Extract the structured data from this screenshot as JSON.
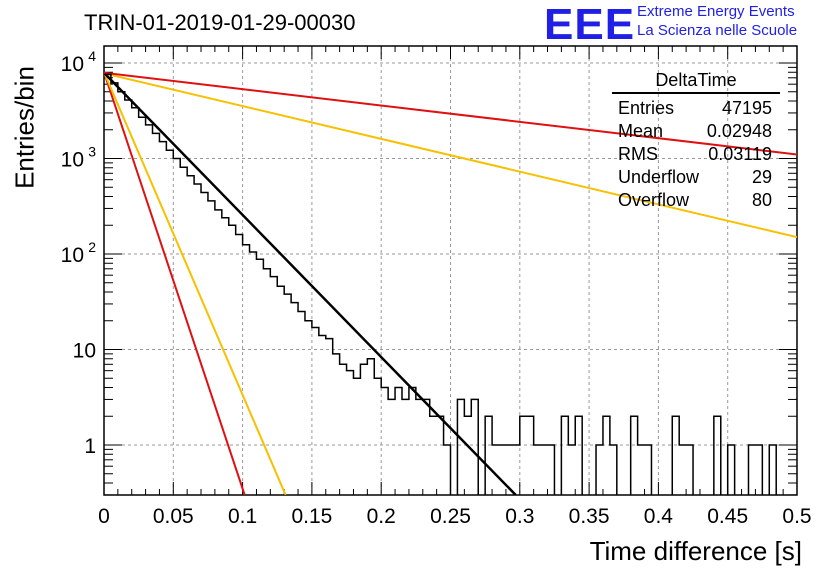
{
  "header": {
    "title": "TRIN-01-2019-01-29-00030",
    "logo_text": "EEE",
    "logo_line1": "Extreme Energy Events",
    "logo_line2": "La Scienza nelle Scuole",
    "logo_color": "#1f1fe6"
  },
  "stats": {
    "title": "DeltaTime",
    "rows": [
      {
        "label": "Entries",
        "value": "47195"
      },
      {
        "label": "Mean",
        "value": "0.02948"
      },
      {
        "label": "RMS",
        "value": "0.03119"
      },
      {
        "label": "Underflow",
        "value": "29"
      },
      {
        "label": "Overflow",
        "value": "80"
      }
    ]
  },
  "chart_data": {
    "type": "line",
    "title": "TRIN-01-2019-01-29-00030",
    "xlabel": "Time difference [s]",
    "ylabel": "Entries/bin",
    "xlim": [
      0,
      0.5
    ],
    "ylim": [
      0.3,
      14000
    ],
    "yscale": "log",
    "grid": true,
    "xticks": [
      "0",
      "0.05",
      "0.1",
      "0.15",
      "0.2",
      "0.25",
      "0.3",
      "0.35",
      "0.4",
      "0.45",
      "0.5"
    ],
    "yticks": [
      {
        "value": 1,
        "label": "1"
      },
      {
        "value": 10,
        "label": "10"
      },
      {
        "value": 100,
        "label": "10",
        "sup": "2"
      },
      {
        "value": 1000,
        "label": "10",
        "sup": "3"
      },
      {
        "value": 10000,
        "label": "10",
        "sup": "4"
      }
    ],
    "histogram": {
      "bin_width": 0.005,
      "values": [
        7600,
        6200,
        5000,
        4100,
        3400,
        2700,
        2250,
        1830,
        1500,
        1220,
        1000,
        810,
        660,
        540,
        440,
        360,
        290,
        240,
        200,
        160,
        125,
        105,
        88,
        70,
        58,
        46,
        38,
        31,
        25,
        20,
        17,
        14,
        13,
        9,
        7,
        6,
        5,
        7,
        8,
        5,
        4,
        3,
        4,
        3,
        4,
        3,
        3,
        2,
        2,
        1,
        0,
        3,
        2,
        3,
        0,
        2,
        1,
        1,
        1,
        1,
        2,
        2,
        1,
        1,
        1,
        0,
        2,
        1,
        2,
        0,
        0,
        1,
        2,
        1,
        0,
        0,
        2,
        1,
        1,
        0,
        0,
        0,
        2,
        1,
        1,
        0,
        0,
        0,
        2,
        0,
        1,
        0,
        0,
        1,
        1,
        0,
        1,
        0,
        0,
        0
      ]
    },
    "fits": [
      {
        "color": "#e01010",
        "a": 7900,
        "x0": 0,
        "b": 2.27,
        "x1": 0.11
      },
      {
        "color": "#f7c000",
        "a": 7900,
        "x0": 0,
        "b": 8.4,
        "x1": 0.5
      },
      {
        "color": "#e01010",
        "a": 7900,
        "x0": 0,
        "b": 3.9,
        "x1": 0.5
      },
      {
        "color": "#f7c000",
        "a": 7900,
        "x0": 0,
        "b": 1.35,
        "x1": 0.14
      },
      {
        "color": "#000000",
        "a": 7900,
        "x0": 0,
        "b": 30.0,
        "x1": 0.3
      }
    ]
  }
}
